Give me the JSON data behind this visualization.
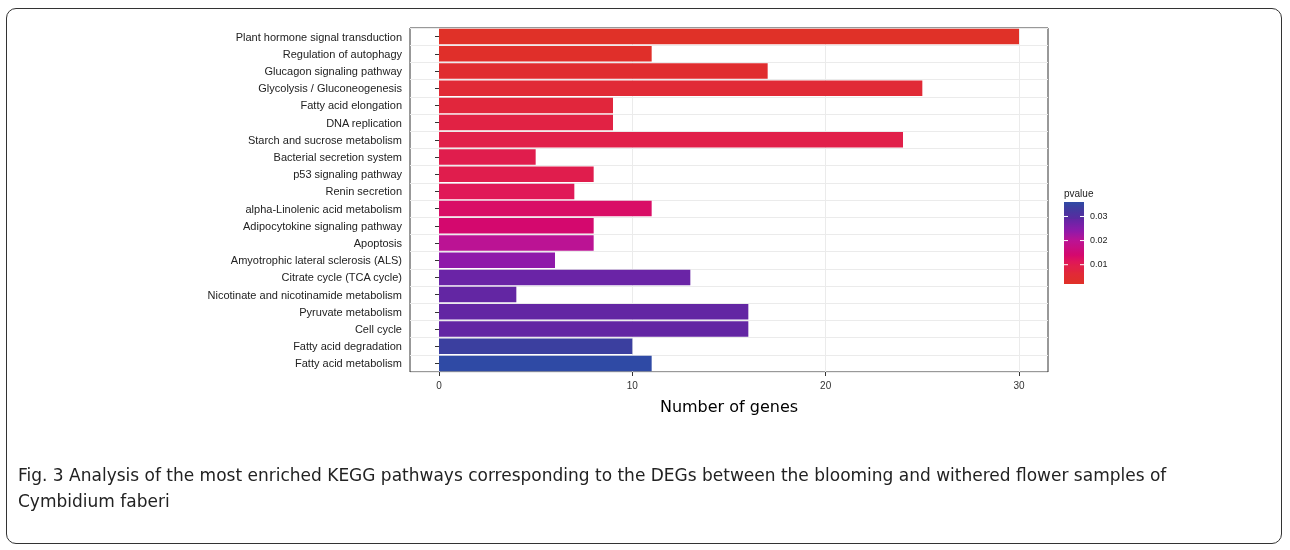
{
  "chart_data": {
    "type": "bar",
    "orientation": "horizontal",
    "categories": [
      "Plant hormone signal transduction",
      "Regulation of autophagy",
      "Glucagon signaling pathway",
      "Glycolysis / Gluconeogenesis",
      "Fatty acid elongation",
      "DNA replication",
      "Starch and sucrose metabolism",
      "Bacterial secretion system",
      "p53 signaling pathway",
      "Renin secretion",
      "alpha-Linolenic acid metabolism",
      "Adipocytokine signaling pathway",
      "Apoptosis",
      "Amyotrophic lateral sclerosis (ALS)",
      "Citrate cycle (TCA cycle)",
      "Nicotinate and nicotinamide metabolism",
      "Pyruvate metabolism",
      "Cell cycle",
      "Fatty acid degradation",
      "Fatty acid metabolism"
    ],
    "values": [
      30,
      11,
      17,
      25,
      9,
      9,
      24,
      5,
      8,
      7,
      11,
      8,
      8,
      6,
      13,
      4,
      16,
      16,
      10,
      11
    ],
    "colors": [
      "#e03128",
      "#e02f2a",
      "#e02d2f",
      "#e12a36",
      "#e1263c",
      "#e12244",
      "#e1204a",
      "#e01d4d",
      "#e01b52",
      "#e01857",
      "#d90d66",
      "#d4086e",
      "#bb1394",
      "#8f1aaa",
      "#6a24a6",
      "#6326a3",
      "#5e289f",
      "#5a2aa0",
      "#3b3f9f",
      "#2f4aa5"
    ],
    "cvalues": [
      0.002,
      0.003,
      0.004,
      0.006,
      0.007,
      0.008,
      0.009,
      0.01,
      0.01,
      0.011,
      0.013,
      0.014,
      0.02,
      0.024,
      0.028,
      0.029,
      0.029,
      0.029,
      0.034,
      0.036
    ],
    "clabel": "pvalue",
    "clim": [
      0.002,
      0.036
    ],
    "cticks": [
      0.01,
      0.02,
      0.03
    ],
    "xlabel": "Number of genes",
    "xlim": [
      -1.5,
      31.5
    ],
    "xticks": [
      0,
      10,
      20,
      30
    ],
    "grid": true,
    "annotations": [
      "Fig. 3 Analysis of the most enriched KEGG pathways corresponding to the DEGs between the blooming and withered flower samples of Cymbidium faberi"
    ]
  }
}
